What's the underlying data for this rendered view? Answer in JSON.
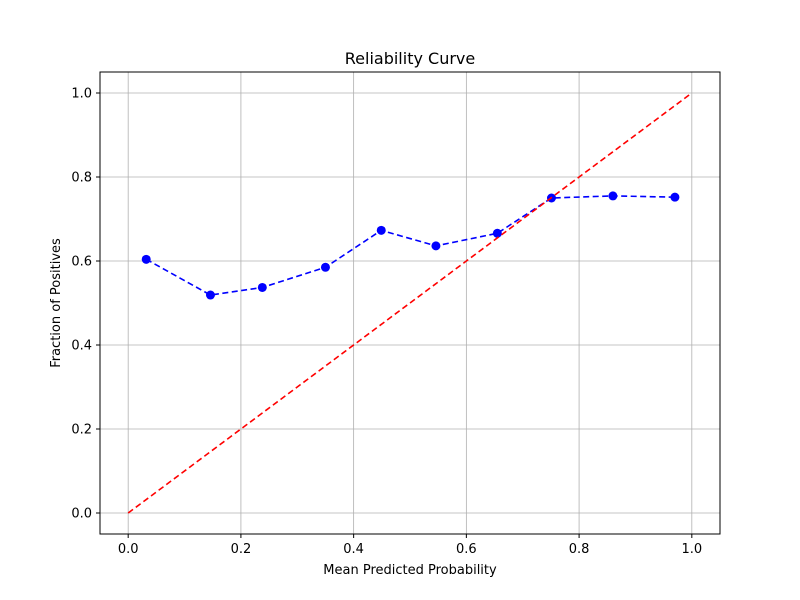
{
  "chart_data": {
    "type": "line",
    "title": "Reliability Curve",
    "xlabel": "Mean Predicted Probability",
    "ylabel": "Fraction of Positives",
    "xlim": [
      -0.05,
      1.05
    ],
    "ylim": [
      -0.05,
      1.05
    ],
    "xticks": [
      0.0,
      0.2,
      0.4,
      0.6,
      0.8,
      1.0
    ],
    "yticks": [
      0.0,
      0.2,
      0.4,
      0.6,
      0.8,
      1.0
    ],
    "xtick_labels": [
      "0.0",
      "0.2",
      "0.4",
      "0.6",
      "0.8",
      "1.0"
    ],
    "ytick_labels": [
      "0.0",
      "0.2",
      "0.4",
      "0.6",
      "0.8",
      "1.0"
    ],
    "grid": true,
    "series": [
      {
        "color": "#0000ff",
        "style": "dashed-with-markers",
        "x": [
          0.032,
          0.146,
          0.238,
          0.35,
          0.449,
          0.546,
          0.655,
          0.751,
          0.86,
          0.97
        ],
        "y": [
          0.604,
          0.519,
          0.537,
          0.585,
          0.673,
          0.636,
          0.666,
          0.75,
          0.755,
          0.752
        ]
      },
      {
        "color": "#ff0000",
        "style": "dashed",
        "x": [
          0.0,
          1.0
        ],
        "y": [
          0.0,
          1.0
        ]
      }
    ]
  }
}
